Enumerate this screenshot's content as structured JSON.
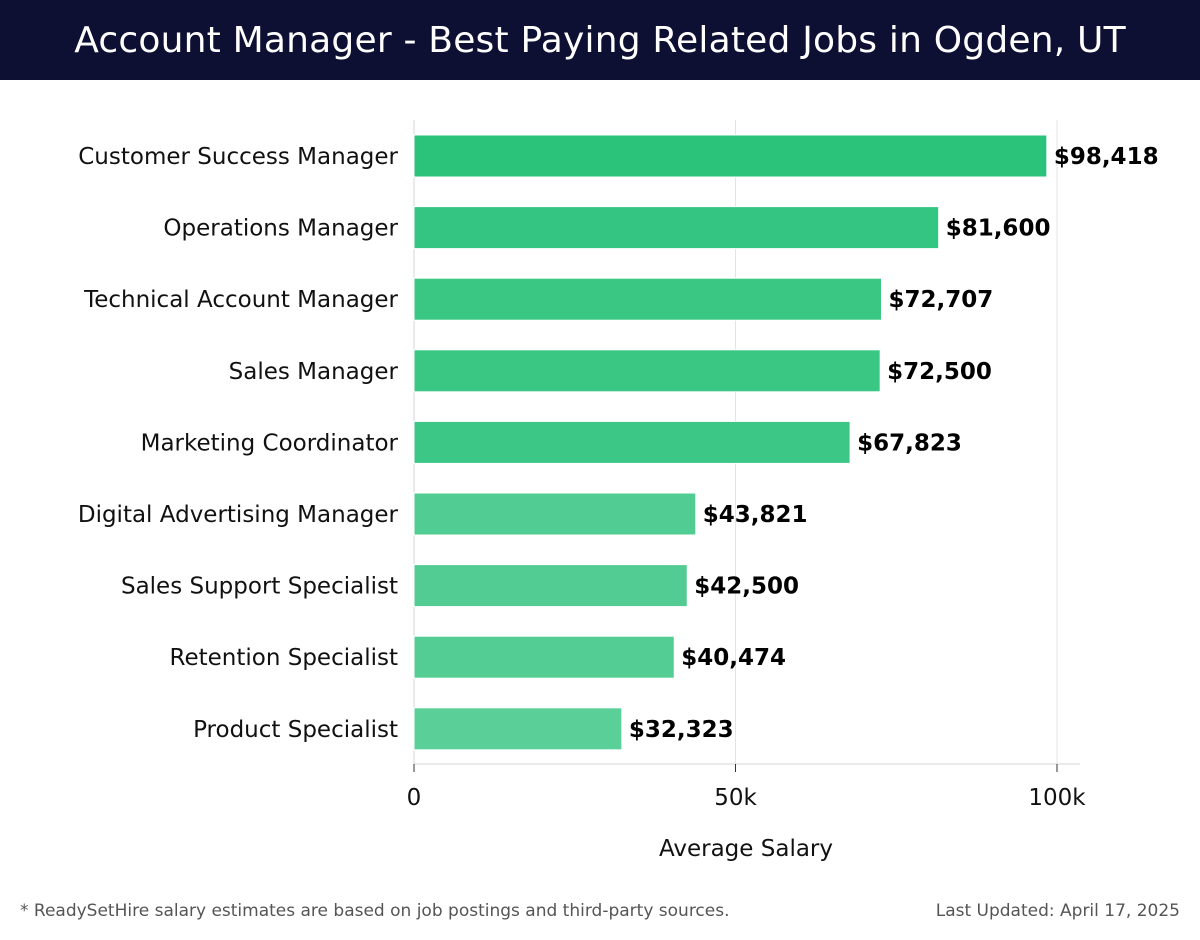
{
  "header": {
    "title": "Account Manager - Best Paying Related Jobs in Ogden, UT"
  },
  "chart_data": {
    "type": "bar",
    "orientation": "horizontal",
    "title": "Account Manager - Best Paying Related Jobs in Ogden, UT",
    "xlabel": "Average Salary",
    "ylabel": "",
    "xlim": [
      0,
      100000
    ],
    "x_ticks": [
      {
        "value": 0,
        "label": "0"
      },
      {
        "value": 50000,
        "label": "50k"
      },
      {
        "value": 100000,
        "label": "100k"
      }
    ],
    "grid": "vertical",
    "legend": "none",
    "categories": [
      "Customer Success Manager",
      "Operations Manager",
      "Technical Account Manager",
      "Sales Manager",
      "Marketing Coordinator",
      "Digital Advertising Manager",
      "Sales Support Specialist",
      "Retention Specialist",
      "Product Specialist"
    ],
    "values": [
      98418,
      81600,
      72707,
      72500,
      67823,
      43821,
      42500,
      40474,
      32323
    ],
    "value_labels": [
      "$98,418",
      "$81,600",
      "$72,707",
      "$72,500",
      "$67,823",
      "$43,821",
      "$42,500",
      "$40,474",
      "$32,323"
    ],
    "bar_colors": [
      "#2bc27a",
      "#35c582",
      "#3ac784",
      "#3ac784",
      "#3dc786",
      "#51cc92",
      "#52cc93",
      "#54cd94",
      "#5acf98"
    ]
  },
  "footer": {
    "note": "* ReadySetHire salary estimates are based on job postings and third-party sources.",
    "updated": "Last Updated: April 17, 2025"
  }
}
